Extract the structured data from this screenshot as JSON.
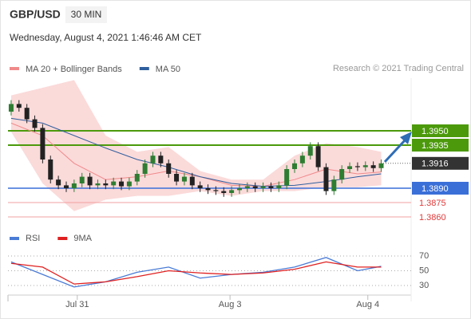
{
  "chart_data": {
    "type": "candlestick",
    "symbol": "GBP/USD",
    "timeframe": "30 MIN",
    "subtitle": "Wednesday, August 4, 2021 1:46:46 AM CET",
    "legend": [
      {
        "name": "MA 20 + Bollinger Bands",
        "color": "#f08a8a"
      },
      {
        "name": "MA 50",
        "color": "#2f5f9e"
      }
    ],
    "copyright": "Research © 2021 Trading Central",
    "xlim": [
      -0.4,
      50.8
    ],
    "xticks": [
      {
        "value": 8.4,
        "label": "Jul 31"
      },
      {
        "value": 27.8,
        "label": "Aug 3"
      },
      {
        "value": 45.3,
        "label": "Aug 4"
      }
    ],
    "ylim": [
      1.384,
      1.4005
    ],
    "up_color": "#2e7d32",
    "down_color": "#222222",
    "ohlc": {
      "open": [
        1.397,
        1.3978,
        1.3974,
        1.3962,
        1.3953,
        1.392,
        1.3899,
        1.3893,
        1.389,
        1.3895,
        1.3902,
        1.3893,
        1.3895,
        1.3893,
        1.3897,
        1.3892,
        1.3897,
        1.3905,
        1.3916,
        1.3924,
        1.3916,
        1.3905,
        1.3897,
        1.3902,
        1.3893,
        1.389,
        1.3888,
        1.3887,
        1.3885,
        1.3888,
        1.389,
        1.3892,
        1.389,
        1.3892,
        1.389,
        1.3893,
        1.391,
        1.3916,
        1.3924,
        1.3934,
        1.3912,
        1.3887,
        1.3899,
        1.391,
        1.3913,
        1.3912,
        1.3914,
        1.3911
      ],
      "high": [
        1.3982,
        1.3982,
        1.3978,
        1.3966,
        1.3957,
        1.3924,
        1.3903,
        1.3897,
        1.3899,
        1.3906,
        1.3906,
        1.3899,
        1.3899,
        1.3901,
        1.3901,
        1.3901,
        1.3909,
        1.392,
        1.3928,
        1.3928,
        1.392,
        1.3909,
        1.3906,
        1.3906,
        1.3897,
        1.3894,
        1.3892,
        1.3891,
        1.3892,
        1.3894,
        1.3896,
        1.3896,
        1.3896,
        1.3896,
        1.3897,
        1.3914,
        1.392,
        1.3928,
        1.3938,
        1.3938,
        1.3916,
        1.3903,
        1.3914,
        1.3917,
        1.3917,
        1.3918,
        1.3918,
        1.392
      ],
      "low": [
        1.3966,
        1.397,
        1.3958,
        1.3949,
        1.3916,
        1.3895,
        1.3889,
        1.3886,
        1.3886,
        1.3891,
        1.3889,
        1.3889,
        1.3889,
        1.3889,
        1.3888,
        1.3888,
        1.3893,
        1.3901,
        1.3912,
        1.3912,
        1.3901,
        1.3893,
        1.3893,
        1.3889,
        1.3886,
        1.3884,
        1.3883,
        1.3881,
        1.3881,
        1.3884,
        1.3886,
        1.3886,
        1.3886,
        1.3886,
        1.3886,
        1.3889,
        1.3906,
        1.3912,
        1.392,
        1.3908,
        1.3883,
        1.3883,
        1.3895,
        1.3906,
        1.3908,
        1.3908,
        1.3907,
        1.3907
      ],
      "close": [
        1.3978,
        1.3974,
        1.3962,
        1.3953,
        1.392,
        1.3899,
        1.3893,
        1.389,
        1.3895,
        1.3902,
        1.3893,
        1.3895,
        1.3893,
        1.3897,
        1.3892,
        1.3897,
        1.3905,
        1.3916,
        1.3924,
        1.3916,
        1.3905,
        1.3897,
        1.3902,
        1.3893,
        1.389,
        1.3888,
        1.3887,
        1.3885,
        1.3888,
        1.389,
        1.3892,
        1.389,
        1.3892,
        1.389,
        1.3893,
        1.391,
        1.3916,
        1.3924,
        1.3934,
        1.3912,
        1.3887,
        1.3899,
        1.391,
        1.3913,
        1.3912,
        1.3914,
        1.3911,
        1.3916
      ]
    },
    "overlay_x": [
      0,
      4,
      8,
      12,
      16,
      20,
      24,
      28,
      32,
      36,
      40,
      44,
      47
    ],
    "bollinger": {
      "upper": [
        1.3987,
        1.3995,
        1.4003,
        1.3945,
        1.3928,
        1.3933,
        1.3908,
        1.3899,
        1.3899,
        1.3924,
        1.3937,
        1.3933,
        1.3928
      ],
      "lower": [
        1.3949,
        1.3895,
        1.3866,
        1.3878,
        1.3882,
        1.3882,
        1.3887,
        1.3882,
        1.3887,
        1.3887,
        1.3891,
        1.3891,
        1.3893
      ],
      "color": "#fbdada"
    },
    "ma20": [
      1.3958,
      1.3945,
      1.3916,
      1.3899,
      1.3902,
      1.3908,
      1.3902,
      1.3893,
      1.3892,
      1.3899,
      1.391,
      1.3905,
      1.3907
    ],
    "ma50": [
      1.3963,
      1.3958,
      1.3945,
      1.3932,
      1.392,
      1.3912,
      1.3902,
      1.3895,
      1.3892,
      1.3893,
      1.3897,
      1.3902,
      1.3905
    ],
    "levels": [
      {
        "value": 1.395,
        "label": "1.3950",
        "color": "#4c9a0c",
        "style": "box"
      },
      {
        "value": 1.3935,
        "label": "1.3935",
        "color": "#4c9a0c",
        "style": "box"
      },
      {
        "value": 1.3916,
        "label": "1.3916",
        "color": "#333333",
        "style": "current"
      },
      {
        "value": 1.389,
        "label": "1.3890",
        "color": "#3a6fd8",
        "style": "box"
      },
      {
        "value": 1.3875,
        "label": "1.3875",
        "color": "#e03a3a",
        "style": "text"
      },
      {
        "value": 1.386,
        "label": "1.3860",
        "color": "#e03a3a",
        "style": "text"
      }
    ],
    "rsi": {
      "legend": [
        {
          "name": "RSI",
          "color": "#4a7bd6"
        },
        {
          "name": "9MA",
          "color": "#e02020"
        }
      ],
      "ylim": [
        10,
        90
      ],
      "yticks": [
        70,
        50,
        30
      ],
      "rsi": [
        62,
        45,
        28,
        35,
        48,
        55,
        40,
        45,
        48,
        55,
        68,
        50,
        56
      ],
      "ma9": [
        60,
        55,
        32,
        35,
        42,
        50,
        47,
        45,
        47,
        52,
        62,
        55,
        55
      ]
    }
  }
}
